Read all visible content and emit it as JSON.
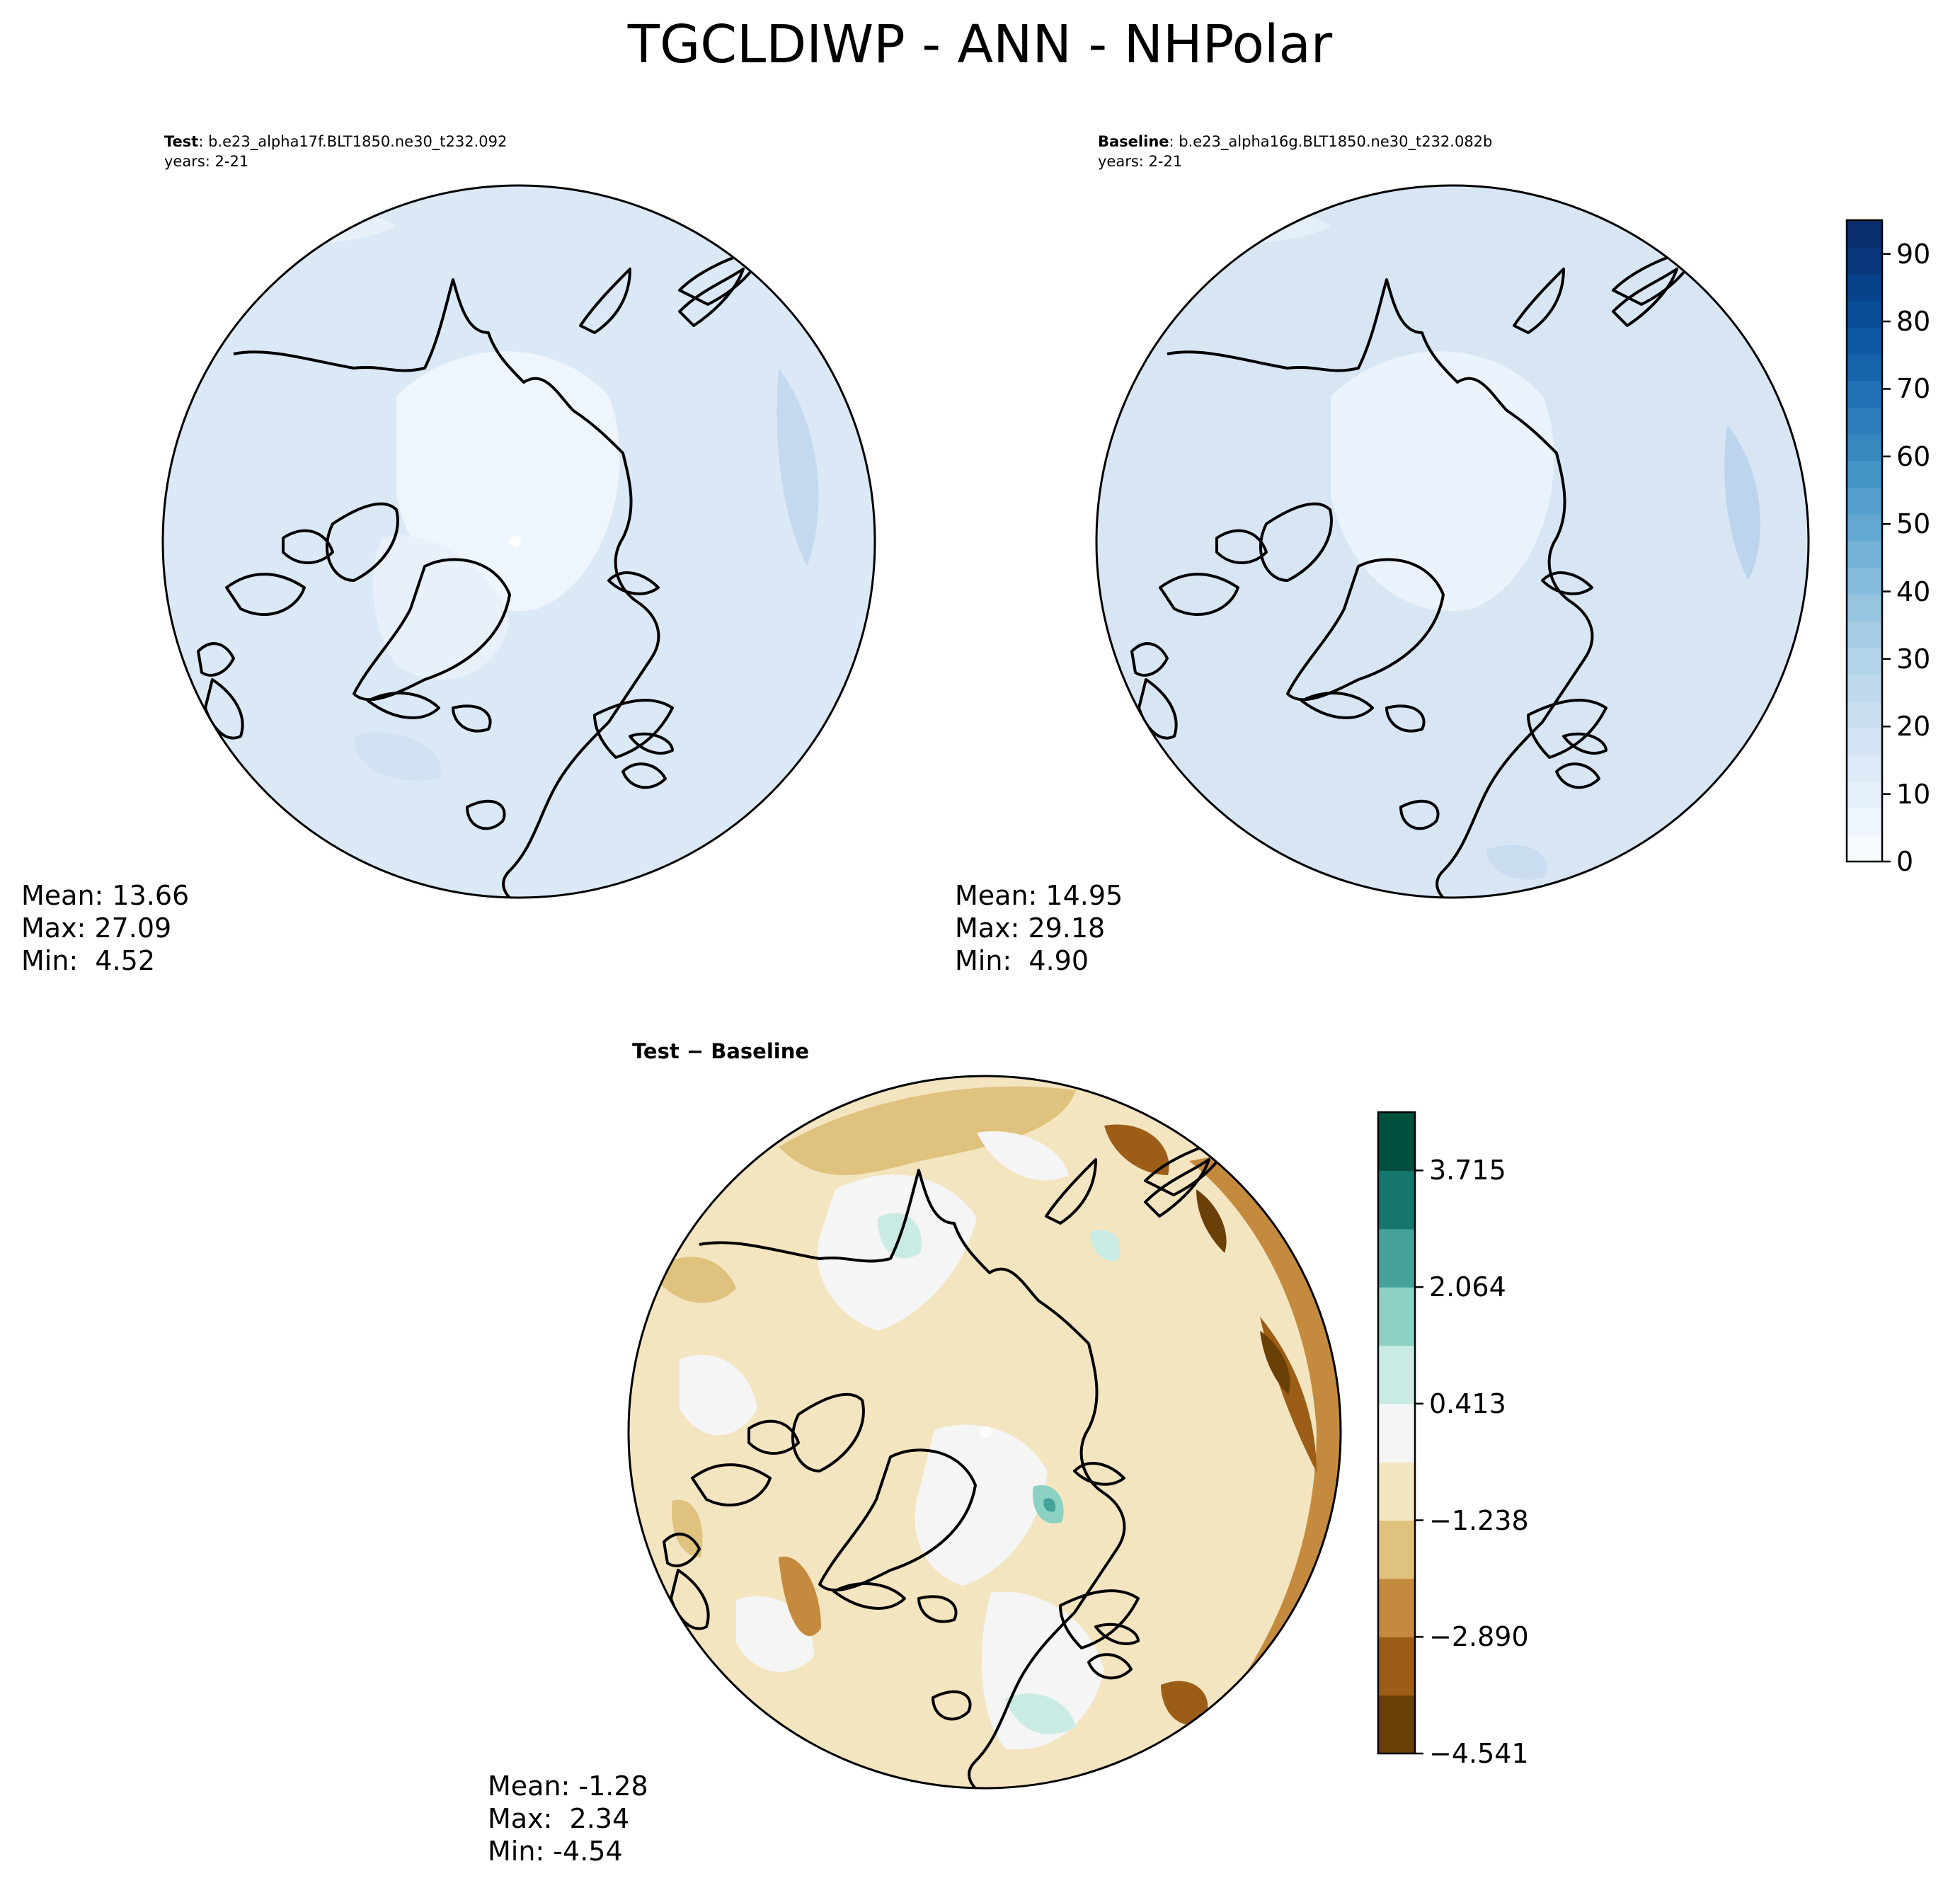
{
  "figure_title": "TGCLDIWP - ANN - NHPolar",
  "panels": {
    "test": {
      "label_bold": "Test",
      "label_text": ": b.e23_alpha17f.BLT1850.ne30_t232.092",
      "years": "years: 2-21",
      "stats": {
        "mean": "Mean: 13.66",
        "max": "Max: 27.09",
        "min": "Min:  4.52"
      }
    },
    "baseline": {
      "label_bold": "Baseline",
      "label_text": ": b.e23_alpha16g.BLT1850.ne30_t232.082b",
      "years": "years: 2-21",
      "stats": {
        "mean": "Mean: 14.95",
        "max": "Max: 29.18",
        "min": "Min:  4.90"
      }
    },
    "difference": {
      "title": "Test − Baseline",
      "stats": {
        "mean": "Mean: -1.28",
        "max": "Max:  2.34",
        "min": "Min: -4.54"
      }
    }
  },
  "chart_data": [
    {
      "type": "heatmap",
      "name": "test-map",
      "projection": "north-polar-stereographic",
      "colormap": "Blues",
      "color_range": [
        0,
        95
      ],
      "mean": 13.66,
      "max": 27.09,
      "min": 4.52
    },
    {
      "type": "heatmap",
      "name": "baseline-map",
      "projection": "north-polar-stereographic",
      "colormap": "Blues",
      "color_range": [
        0,
        95
      ],
      "mean": 14.95,
      "max": 29.18,
      "min": 4.9
    },
    {
      "type": "heatmap",
      "name": "difference-map",
      "projection": "north-polar-stereographic",
      "colormap": "BrBG",
      "color_range": [
        -4.541,
        4.541
      ],
      "mean": -1.28,
      "max": 2.34,
      "min": -4.54
    }
  ],
  "colorbars": {
    "main": {
      "range": [
        0,
        95
      ],
      "ticks": [
        "0",
        "10",
        "20",
        "30",
        "40",
        "50",
        "60",
        "70",
        "80",
        "90"
      ],
      "tick_values": [
        0,
        10,
        20,
        30,
        40,
        50,
        60,
        70,
        80,
        90
      ],
      "colors": [
        "#f7fbff",
        "#eef5fc",
        "#e5eff9",
        "#dce9f6",
        "#d4e4f4",
        "#cbdef1",
        "#c1d9ed",
        "#b3d3e8",
        "#a6cde3",
        "#97c5df",
        "#86bcdc",
        "#75b4d8",
        "#64a9d3",
        "#549fcd",
        "#4594c7",
        "#3989c1",
        "#2d7dbb",
        "#2171b5",
        "#1764ab",
        "#0e58a2",
        "#084d96",
        "#08428a",
        "#08377b",
        "#0b2f6e"
      ]
    },
    "diff": {
      "range": [
        -4.541,
        4.541
      ],
      "ticks": [
        "−4.541",
        "−2.890",
        "−1.238",
        "0.413",
        "2.064",
        "3.715"
      ],
      "tick_values": [
        -4.541,
        -2.89,
        -1.238,
        0.413,
        2.064,
        3.715
      ],
      "colors": [
        "#6a4009",
        "#9c5e17",
        "#c48a3e",
        "#dfc27d",
        "#f4e5c1",
        "#f4f5f4",
        "#c9ebe4",
        "#8bd1c4",
        "#45a299",
        "#15766d",
        "#02513f"
      ]
    }
  },
  "colors": {
    "test_base": "#dbe8f5",
    "baseline_base": "#d6e4f3",
    "land_light": "#eef5fc",
    "diff_base": "#f2e3c0"
  }
}
